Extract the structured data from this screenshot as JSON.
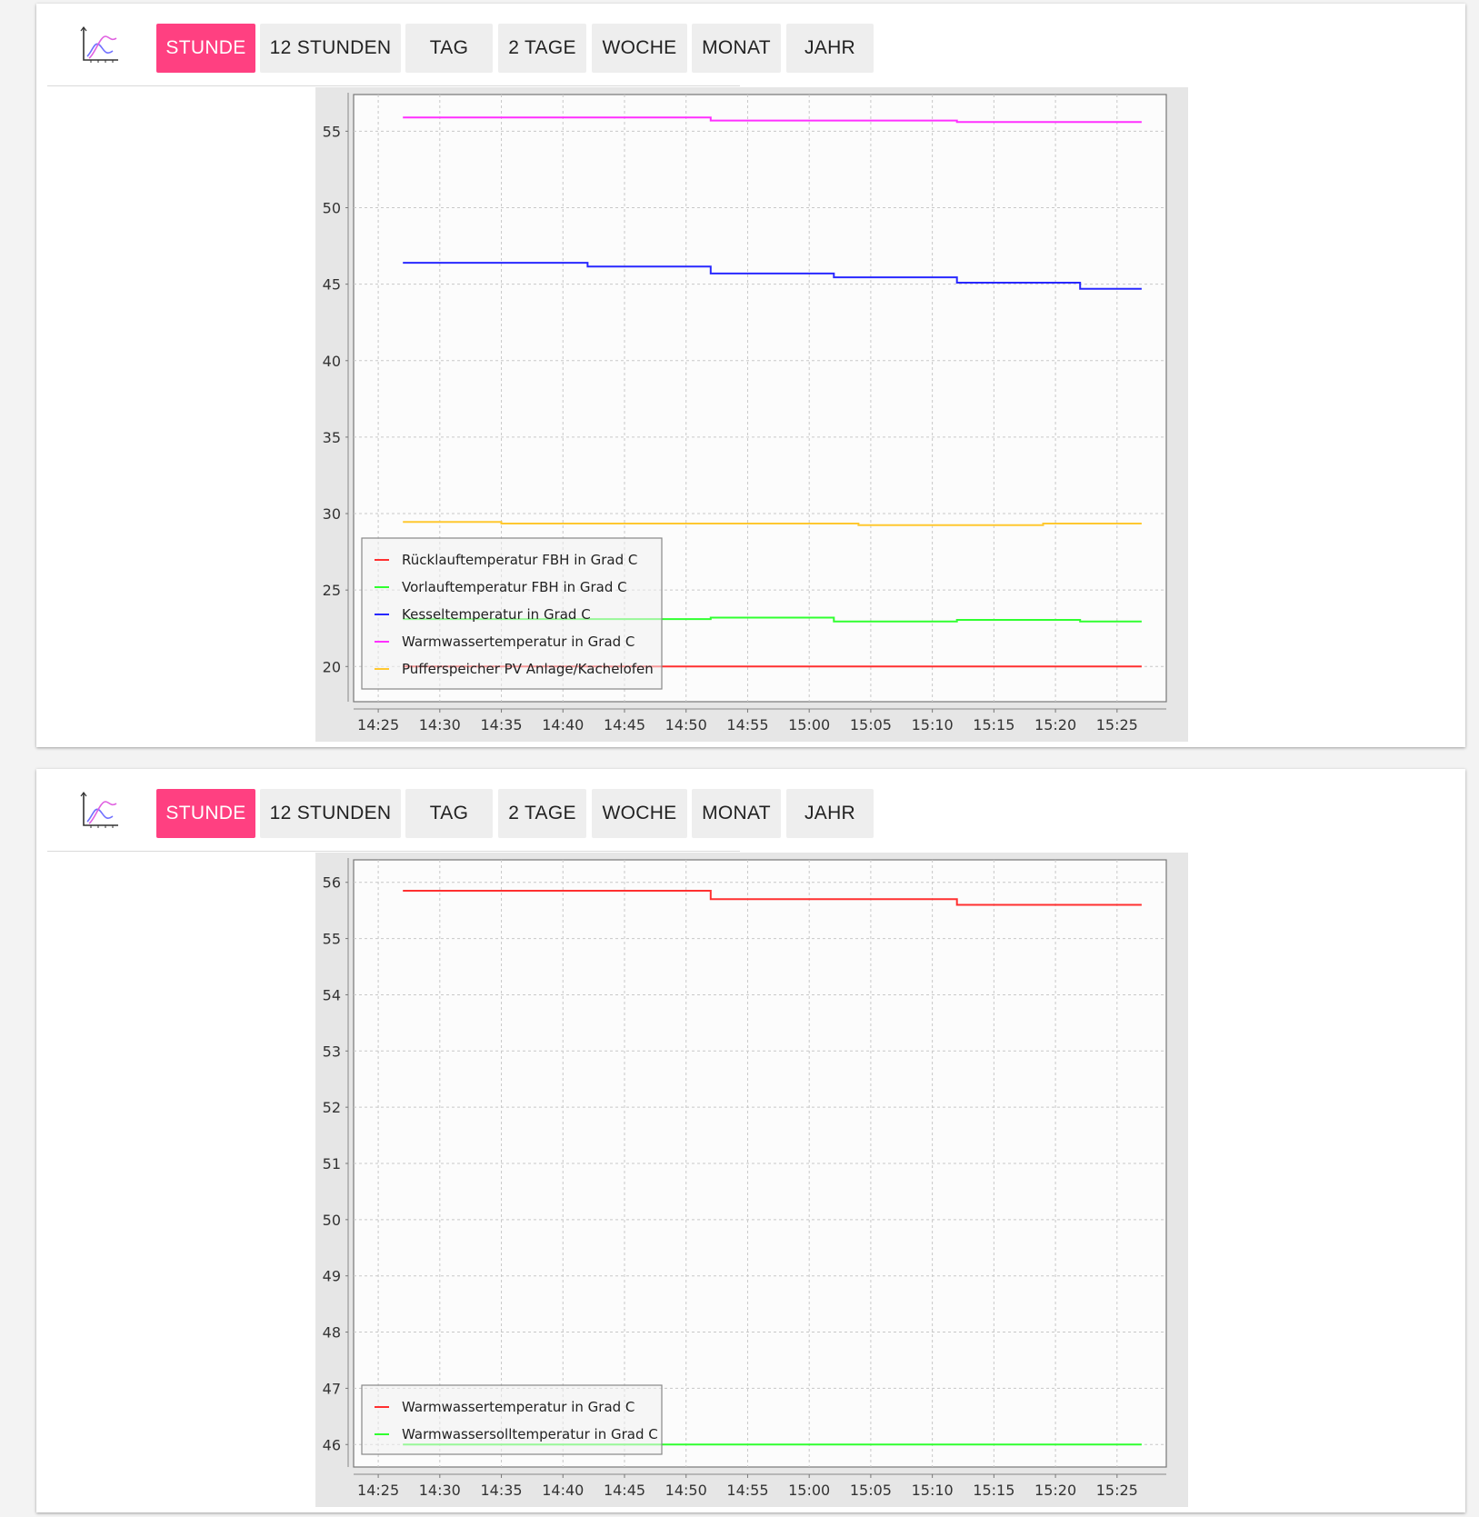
{
  "panels": [
    {
      "tabs": [
        {
          "label": "STUNDE",
          "active": true
        },
        {
          "label": "12 STUNDEN",
          "active": false
        },
        {
          "label": "TAG",
          "active": false
        },
        {
          "label": "2 TAGE",
          "active": false
        },
        {
          "label": "WOCHE",
          "active": false
        },
        {
          "label": "MONAT",
          "active": false
        },
        {
          "label": "JAHR",
          "active": false
        }
      ]
    },
    {
      "tabs": [
        {
          "label": "STUNDE",
          "active": true
        },
        {
          "label": "12 STUNDEN",
          "active": false
        },
        {
          "label": "TAG",
          "active": false
        },
        {
          "label": "2 TAGE",
          "active": false
        },
        {
          "label": "WOCHE",
          "active": false
        },
        {
          "label": "MONAT",
          "active": false
        },
        {
          "label": "JAHR",
          "active": false
        }
      ]
    }
  ],
  "colors": {
    "accent": "#ff4081",
    "tab_bg": "#eeeeee"
  },
  "icons": {
    "chart_button": "line-chart-icon"
  },
  "chart_data": [
    {
      "type": "line",
      "title": "",
      "xlabel": "",
      "ylabel": "",
      "x_ticks": [
        "14:25",
        "14:30",
        "14:35",
        "14:40",
        "14:45",
        "14:50",
        "14:55",
        "15:00",
        "15:05",
        "15:10",
        "15:15",
        "15:20",
        "15:25"
      ],
      "x_range": [
        "14:23",
        "15:29"
      ],
      "ylim": [
        17.7,
        57.4
      ],
      "y_ticks": [
        20,
        25,
        30,
        35,
        40,
        45,
        50,
        55
      ],
      "grid": true,
      "legend_position": "bottom-left",
      "series": [
        {
          "name": "Rücklauftemperatur FBH in Grad C",
          "color": "#ff3030",
          "points": [
            [
              "14:27",
              20.0
            ],
            [
              "15:27",
              20.0
            ]
          ]
        },
        {
          "name": "Vorlauftemperatur FBH in Grad C",
          "color": "#30ff30",
          "points": [
            [
              "14:27",
              23.1
            ],
            [
              "14:52",
              23.1
            ],
            [
              "14:52",
              23.2
            ],
            [
              "15:02",
              23.2
            ],
            [
              "15:02",
              22.95
            ],
            [
              "15:12",
              22.95
            ],
            [
              "15:12",
              23.05
            ],
            [
              "15:22",
              23.05
            ],
            [
              "15:22",
              22.95
            ],
            [
              "15:27",
              22.95
            ]
          ]
        },
        {
          "name": "Kesseltemperatur in Grad C",
          "color": "#2828ff",
          "points": [
            [
              "14:27",
              46.4
            ],
            [
              "14:42",
              46.4
            ],
            [
              "14:42",
              46.15
            ],
            [
              "14:52",
              46.15
            ],
            [
              "14:52",
              45.7
            ],
            [
              "15:02",
              45.7
            ],
            [
              "15:02",
              45.45
            ],
            [
              "15:12",
              45.45
            ],
            [
              "15:12",
              45.1
            ],
            [
              "15:22",
              45.1
            ],
            [
              "15:22",
              44.7
            ],
            [
              "15:27",
              44.7
            ]
          ]
        },
        {
          "name": "Warmwassertemperatur in Grad C",
          "color": "#ff30ff",
          "points": [
            [
              "14:27",
              55.9
            ],
            [
              "14:52",
              55.9
            ],
            [
              "14:52",
              55.7
            ],
            [
              "15:12",
              55.7
            ],
            [
              "15:12",
              55.6
            ],
            [
              "15:27",
              55.6
            ]
          ]
        },
        {
          "name": "Pufferspeicher PV Anlage/Kachelofen",
          "color": "#ffc830",
          "points": [
            [
              "14:27",
              29.45
            ],
            [
              "14:35",
              29.45
            ],
            [
              "14:35",
              29.35
            ],
            [
              "15:04",
              29.35
            ],
            [
              "15:04",
              29.25
            ],
            [
              "15:19",
              29.25
            ],
            [
              "15:19",
              29.35
            ],
            [
              "15:27",
              29.35
            ]
          ]
        }
      ]
    },
    {
      "type": "line",
      "title": "",
      "xlabel": "",
      "ylabel": "",
      "x_ticks": [
        "14:25",
        "14:30",
        "14:35",
        "14:40",
        "14:45",
        "14:50",
        "14:55",
        "15:00",
        "15:05",
        "15:10",
        "15:15",
        "15:20",
        "15:25"
      ],
      "x_range": [
        "14:23",
        "15:29"
      ],
      "ylim": [
        45.6,
        56.4
      ],
      "y_ticks": [
        46,
        47,
        48,
        49,
        50,
        51,
        52,
        53,
        54,
        55,
        56
      ],
      "grid": true,
      "legend_position": "bottom-left",
      "series": [
        {
          "name": "Warmwassertemperatur in Grad C",
          "color": "#ff3030",
          "points": [
            [
              "14:27",
              55.85
            ],
            [
              "14:52",
              55.85
            ],
            [
              "14:52",
              55.7
            ],
            [
              "15:12",
              55.7
            ],
            [
              "15:12",
              55.6
            ],
            [
              "15:27",
              55.6
            ]
          ]
        },
        {
          "name": "Warmwassersolltemperatur in Grad C",
          "color": "#30ff30",
          "points": [
            [
              "14:27",
              46.0
            ],
            [
              "15:27",
              46.0
            ]
          ]
        }
      ]
    }
  ]
}
